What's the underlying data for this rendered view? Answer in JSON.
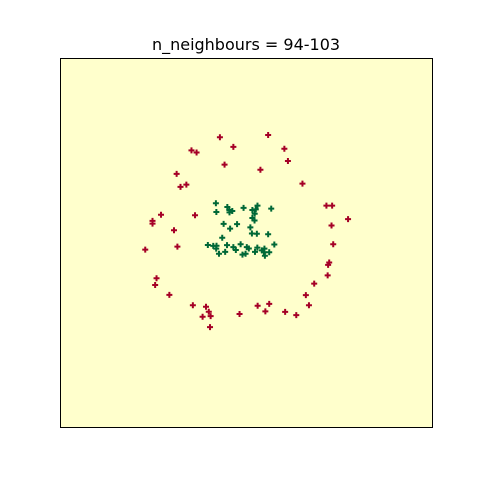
{
  "chart_data": {
    "type": "scatter",
    "title": "n_neighbours = 94-103",
    "xlabel": "",
    "ylabel": "",
    "xlim": [
      -1.2,
      1.2
    ],
    "ylim": [
      -1.2,
      1.2
    ],
    "grid": false,
    "legend": "none",
    "marker": "plus",
    "background_color": "#ffffcc",
    "series": [
      {
        "color": "#a50026",
        "points": [
          [
            -0.356,
            0.604
          ],
          [
            -0.323,
            0.59
          ],
          [
            -0.172,
            0.69
          ],
          [
            -0.085,
            0.627
          ],
          [
            0.14,
            0.704
          ],
          [
            0.245,
            0.615
          ],
          [
            0.268,
            0.535
          ],
          [
            0.09,
            0.478
          ],
          [
            -0.142,
            0.511
          ],
          [
            -0.452,
            0.451
          ],
          [
            -0.427,
            0.366
          ],
          [
            -0.389,
            0.381
          ],
          [
            0.362,
            0.387
          ],
          [
            0.517,
            0.244
          ],
          [
            0.554,
            0.244
          ],
          [
            0.657,
            0.156
          ],
          [
            -0.553,
            0.184
          ],
          [
            -0.608,
            0.144
          ],
          [
            -0.608,
            0.126
          ],
          [
            -0.469,
            0.083
          ],
          [
            -0.333,
            0.181
          ],
          [
            0.55,
            0.114
          ],
          [
            0.561,
            -0.008
          ],
          [
            0.528,
            -0.143
          ],
          [
            0.535,
            -0.127
          ],
          [
            0.525,
            -0.211
          ],
          [
            -0.447,
            -0.024
          ],
          [
            -0.655,
            -0.043
          ],
          [
            -0.582,
            -0.23
          ],
          [
            -0.591,
            -0.274
          ],
          [
            0.438,
            -0.265
          ],
          [
            0.384,
            -0.34
          ],
          [
            -0.499,
            -0.338
          ],
          [
            -0.347,
            -0.406
          ],
          [
            -0.262,
            -0.416
          ],
          [
            -0.244,
            -0.448
          ],
          [
            -0.284,
            -0.481
          ],
          [
            -0.232,
            -0.477
          ],
          [
            -0.045,
            -0.463
          ],
          [
            0.072,
            -0.409
          ],
          [
            0.122,
            -0.446
          ],
          [
            0.147,
            -0.397
          ],
          [
            0.25,
            -0.449
          ],
          [
            0.322,
            -0.47
          ],
          [
            0.404,
            -0.406
          ],
          [
            -0.236,
            -0.549
          ]
        ]
      },
      {
        "color": "#006837",
        "points": [
          [
            -0.198,
            0.259
          ],
          [
            -0.124,
            0.235
          ],
          [
            -0.111,
            0.215
          ],
          [
            -0.11,
            0.2
          ],
          [
            -0.092,
            0.209
          ],
          [
            -0.019,
            0.229
          ],
          [
            0.038,
            0.215
          ],
          [
            0.071,
            0.244
          ],
          [
            0.06,
            0.219
          ],
          [
            0.053,
            0.191
          ],
          [
            0.038,
            0.163
          ],
          [
            0.052,
            0.147
          ],
          [
            0.16,
            0.224
          ],
          [
            -0.195,
            0.202
          ],
          [
            -0.148,
            0.125
          ],
          [
            -0.106,
            0.094
          ],
          [
            -0.061,
            0.123
          ],
          [
            0.025,
            0.102
          ],
          [
            0.035,
            0.062
          ],
          [
            0.067,
            0.06
          ],
          [
            0.14,
            0.057
          ],
          [
            -0.25,
            -0.013
          ],
          [
            -0.215,
            -0.019
          ],
          [
            -0.194,
            -0.018
          ],
          [
            -0.196,
            -0.037
          ],
          [
            -0.178,
            -0.07
          ],
          [
            -0.138,
            -0.058
          ],
          [
            -0.126,
            -0.014
          ],
          [
            -0.085,
            -0.027
          ],
          [
            -0.069,
            -0.046
          ],
          [
            -0.038,
            -0.008
          ],
          [
            -0.026,
            -0.076
          ],
          [
            -0.006,
            -0.07
          ],
          [
            0.002,
            -0.027
          ],
          [
            0.015,
            -0.036
          ],
          [
            0.055,
            -0.058
          ],
          [
            0.07,
            -0.03
          ],
          [
            0.099,
            -0.048
          ],
          [
            0.113,
            -0.06
          ],
          [
            0.116,
            -0.037
          ],
          [
            0.147,
            -0.06
          ],
          [
            0.119,
            -0.083
          ],
          [
            0.18,
            -0.01
          ],
          [
            -0.157,
            0.034
          ]
        ]
      }
    ]
  }
}
